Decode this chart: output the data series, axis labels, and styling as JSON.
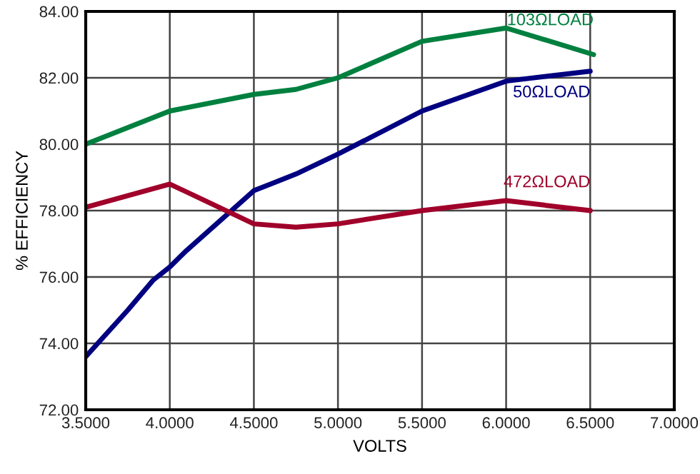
{
  "chart_data": {
    "type": "line",
    "xlabel": "VOLTS",
    "ylabel": "% EFFICIENCY",
    "xlim": [
      3.5,
      7.0
    ],
    "xticks": [
      {
        "value": 3.5,
        "label": "3.5000"
      },
      {
        "value": 4.0,
        "label": "4.0000"
      },
      {
        "value": 4.5,
        "label": "4.5000"
      },
      {
        "value": 5.0,
        "label": "5.0000"
      },
      {
        "value": 5.5,
        "label": "5.5000"
      },
      {
        "value": 6.0,
        "label": "6.0000"
      },
      {
        "value": 6.5,
        "label": "6.5000"
      },
      {
        "value": 7.0,
        "label": "7.0000"
      }
    ],
    "ylim": [
      72,
      84
    ],
    "yticks": [
      {
        "value": 72,
        "label": "72.00"
      },
      {
        "value": 74,
        "label": "74.00"
      },
      {
        "value": 76,
        "label": "76.00"
      },
      {
        "value": 78,
        "label": "78.00"
      },
      {
        "value": 80,
        "label": "80.00"
      },
      {
        "value": 82,
        "label": "82.00"
      },
      {
        "value": 84,
        "label": "84.00"
      }
    ],
    "grid": true,
    "legend": false,
    "marker": "none",
    "line_style": "solid",
    "series": [
      {
        "name": "103ΩLOAD",
        "color": "#00803f",
        "x": [
          3.5,
          4.0,
          4.5,
          4.75,
          5.0,
          5.5,
          6.0,
          6.52
        ],
        "values": [
          80.0,
          81.0,
          81.5,
          81.65,
          82.0,
          83.1,
          83.5,
          82.7
        ]
      },
      {
        "name": "50ΩLOAD",
        "color": "#000080",
        "x": [
          3.5,
          3.75,
          3.9,
          4.0,
          4.1,
          4.5,
          4.75,
          5.0,
          5.5,
          6.0,
          6.5
        ],
        "values": [
          73.6,
          75.0,
          75.9,
          76.3,
          76.8,
          78.6,
          79.1,
          79.7,
          81.0,
          81.9,
          82.2
        ]
      },
      {
        "name": "472ΩLOAD",
        "color": "#a0002a",
        "x": [
          3.5,
          4.0,
          4.25,
          4.5,
          4.75,
          5.0,
          5.5,
          6.0,
          6.5
        ],
        "values": [
          78.1,
          78.8,
          78.2,
          77.6,
          77.5,
          77.6,
          78.0,
          78.3,
          78.0
        ]
      }
    ]
  }
}
